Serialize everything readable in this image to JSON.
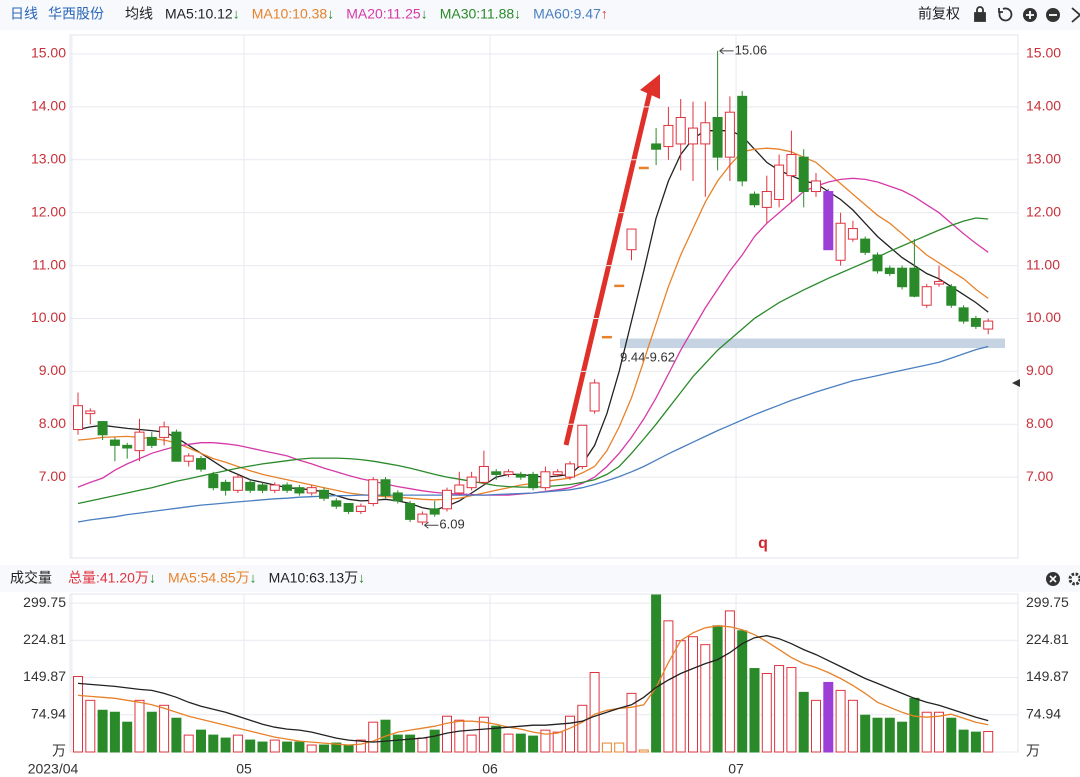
{
  "header": {
    "period": "日线",
    "name": "华西股份",
    "ma_label": "均线",
    "adjust": "前复权"
  },
  "chart_data": [
    {
      "type": "candlestick",
      "open": [
        7.9,
        8.2,
        8.05,
        7.7,
        7.6,
        7.5,
        7.75,
        7.75,
        7.85,
        7.3,
        7.35,
        7.05,
        6.9,
        6.75,
        6.9,
        6.85,
        6.75,
        6.85,
        6.8,
        6.7,
        6.75,
        6.55,
        6.5,
        6.35,
        6.5,
        6.95,
        6.7,
        6.5,
        6.15,
        6.4,
        6.4,
        6.7,
        6.8,
        6.9,
        7.1,
        7.05,
        7.05,
        7.05,
        6.8,
        7.05,
        7.0,
        7.2,
        8.25,
        9.66,
        10.63,
        11.3,
        12.86,
        13.3,
        13.25,
        13.3,
        13.3,
        13.3,
        13.8,
        13.05,
        14.2,
        12.35,
        12.1,
        12.25,
        12.7,
        13.05,
        12.4,
        12.4,
        11.1,
        11.5,
        11.5,
        11.2,
        10.95,
        10.95,
        10.95,
        10.25,
        10.65,
        10.6,
        10.2,
        10.0,
        9.8
      ],
      "high": [
        8.6,
        8.3,
        8.05,
        7.75,
        7.65,
        8.1,
        7.85,
        8.05,
        7.9,
        7.45,
        7.4,
        7.1,
        6.95,
        7.05,
        6.95,
        6.9,
        6.9,
        6.9,
        6.85,
        6.85,
        6.8,
        6.6,
        6.5,
        6.5,
        7.0,
        7.0,
        6.75,
        6.55,
        6.35,
        6.55,
        6.8,
        7.1,
        7.1,
        7.5,
        7.15,
        7.15,
        7.1,
        7.1,
        7.2,
        7.15,
        7.3,
        7.98,
        8.85,
        9.66,
        10.63,
        11.69,
        12.86,
        13.6,
        14.0,
        14.15,
        14.1,
        14.1,
        15.06,
        14.2,
        14.3,
        12.4,
        12.7,
        13.1,
        13.55,
        13.2,
        12.75,
        12.45,
        12.0,
        11.85,
        11.55,
        11.25,
        11.0,
        11.0,
        11.5,
        10.65,
        11.0,
        10.65,
        10.25,
        10.05,
        10.0
      ],
      "low": [
        7.8,
        8.0,
        7.7,
        7.3,
        7.35,
        7.3,
        7.55,
        7.6,
        7.3,
        7.2,
        7.1,
        6.75,
        6.65,
        6.7,
        6.7,
        6.7,
        6.7,
        6.7,
        6.65,
        6.65,
        6.55,
        6.4,
        6.3,
        6.3,
        6.45,
        6.6,
        6.5,
        6.15,
        6.09,
        6.25,
        6.35,
        6.65,
        6.75,
        6.85,
        6.95,
        7.0,
        6.95,
        6.75,
        6.75,
        7.0,
        6.95,
        7.15,
        8.2,
        9.66,
        10.63,
        11.1,
        12.86,
        12.9,
        13.0,
        12.8,
        12.6,
        12.3,
        12.8,
        12.6,
        12.5,
        12.1,
        11.8,
        12.1,
        12.2,
        12.1,
        12.3,
        11.3,
        11.0,
        11.45,
        11.2,
        10.85,
        10.8,
        10.55,
        10.4,
        10.2,
        10.6,
        10.2,
        9.9,
        9.8,
        9.7
      ],
      "close": [
        8.35,
        8.25,
        7.8,
        7.6,
        7.55,
        7.85,
        7.6,
        7.95,
        7.3,
        7.4,
        7.15,
        6.8,
        6.75,
        7.0,
        6.75,
        6.75,
        6.85,
        6.75,
        6.7,
        6.8,
        6.6,
        6.45,
        6.35,
        6.45,
        6.95,
        6.65,
        6.55,
        6.2,
        6.3,
        6.3,
        6.75,
        6.85,
        7.0,
        7.2,
        7.05,
        7.1,
        7.0,
        6.8,
        7.1,
        7.1,
        7.25,
        7.98,
        8.78,
        9.66,
        10.63,
        11.69,
        12.86,
        13.2,
        13.65,
        13.8,
        13.6,
        13.7,
        13.05,
        13.9,
        12.6,
        12.15,
        12.4,
        12.9,
        13.1,
        12.4,
        12.6,
        11.3,
        11.8,
        11.7,
        11.25,
        10.9,
        10.85,
        10.6,
        10.42,
        10.6,
        10.7,
        10.25,
        9.95,
        9.85,
        9.95
      ],
      "up_color": "#e0333f",
      "down_color": "#2a8a2a",
      "flat_color": "#e8822a",
      "highlight": {
        "index": 61,
        "color": "#9b3fd6"
      },
      "series": [
        {
          "name": "MA5:10.12",
          "trend": "↓",
          "trend_color": "#2a8a2a",
          "color": "#222222",
          "values": [
            7.9,
            7.95,
            7.98,
            7.95,
            7.92,
            7.9,
            7.88,
            7.85,
            7.75,
            7.6,
            7.45,
            7.3,
            7.15,
            7.05,
            6.95,
            6.9,
            6.85,
            6.8,
            6.78,
            6.76,
            6.72,
            6.65,
            6.58,
            6.55,
            6.56,
            6.58,
            6.55,
            6.5,
            6.42,
            6.38,
            6.45,
            6.55,
            6.7,
            6.85,
            7.0,
            7.05,
            7.05,
            7.02,
            7.0,
            7.02,
            7.05,
            7.25,
            7.6,
            8.2,
            9.0,
            9.95,
            10.9,
            11.9,
            12.6,
            13.1,
            13.4,
            13.55,
            13.55,
            13.55,
            13.45,
            13.2,
            12.95,
            12.8,
            12.7,
            12.6,
            12.55,
            12.4,
            12.25,
            12.05,
            11.8,
            11.55,
            11.35,
            11.15,
            11.0,
            10.85,
            10.75,
            10.6,
            10.45,
            10.3,
            10.12
          ]
        },
        {
          "name": "MA10:10.38",
          "trend": "↓",
          "trend_color": "#2a8a2a",
          "color": "#e8822a",
          "values": [
            7.7,
            7.72,
            7.75,
            7.76,
            7.77,
            7.75,
            7.73,
            7.7,
            7.65,
            7.55,
            7.45,
            7.35,
            7.28,
            7.2,
            7.12,
            7.05,
            7.0,
            6.95,
            6.9,
            6.85,
            6.8,
            6.75,
            6.7,
            6.67,
            6.65,
            6.63,
            6.62,
            6.6,
            6.58,
            6.57,
            6.58,
            6.6,
            6.65,
            6.7,
            6.75,
            6.8,
            6.85,
            6.88,
            6.92,
            6.95,
            6.98,
            7.08,
            7.2,
            7.5,
            7.95,
            8.5,
            9.2,
            9.9,
            10.6,
            11.2,
            11.7,
            12.2,
            12.6,
            12.9,
            13.15,
            13.2,
            13.22,
            13.2,
            13.15,
            13.05,
            12.95,
            12.75,
            12.55,
            12.35,
            12.15,
            11.95,
            11.8,
            11.6,
            11.4,
            11.2,
            11.05,
            10.9,
            10.75,
            10.55,
            10.38
          ]
        },
        {
          "name": "MA20:11.25",
          "trend": "↓",
          "trend_color": "#2a8a2a",
          "color": "#d63aa8",
          "values": [
            6.81,
            6.9,
            6.98,
            7.13,
            7.25,
            7.35,
            7.45,
            7.52,
            7.58,
            7.62,
            7.65,
            7.65,
            7.63,
            7.6,
            7.55,
            7.5,
            7.45,
            7.4,
            7.32,
            7.25,
            7.17,
            7.1,
            7.03,
            6.97,
            6.92,
            6.87,
            6.82,
            6.78,
            6.74,
            6.71,
            6.69,
            6.68,
            6.67,
            6.66,
            6.66,
            6.66,
            6.68,
            6.7,
            6.73,
            6.76,
            6.8,
            6.88,
            7.0,
            7.2,
            7.45,
            7.75,
            8.1,
            8.5,
            8.95,
            9.4,
            9.8,
            10.2,
            10.55,
            10.9,
            11.2,
            11.55,
            11.8,
            12.0,
            12.2,
            12.4,
            12.5,
            12.58,
            12.63,
            12.65,
            12.63,
            12.58,
            12.5,
            12.42,
            12.3,
            12.15,
            12.0,
            11.8,
            11.6,
            11.42,
            11.25
          ]
        },
        {
          "name": "MA30:11.88",
          "trend": "↓",
          "trend_color": "#2a8a2a",
          "color": "#2a8a2a",
          "values": [
            6.5,
            6.55,
            6.6,
            6.65,
            6.7,
            6.75,
            6.8,
            6.86,
            6.92,
            6.97,
            7.02,
            7.07,
            7.12,
            7.17,
            7.21,
            7.25,
            7.28,
            7.31,
            7.34,
            7.36,
            7.36,
            7.36,
            7.35,
            7.33,
            7.3,
            7.26,
            7.22,
            7.17,
            7.11,
            7.05,
            7.0,
            6.96,
            6.92,
            6.88,
            6.84,
            6.82,
            6.81,
            6.81,
            6.82,
            6.84,
            6.86,
            6.9,
            6.95,
            7.05,
            7.2,
            7.45,
            7.72,
            8.0,
            8.3,
            8.6,
            8.9,
            9.15,
            9.4,
            9.6,
            9.8,
            10.0,
            10.15,
            10.3,
            10.42,
            10.54,
            10.65,
            10.76,
            10.86,
            10.96,
            11.06,
            11.16,
            11.27,
            11.37,
            11.47,
            11.57,
            11.67,
            11.76,
            11.84,
            11.9,
            11.88
          ]
        },
        {
          "name": "MA60:9.47",
          "trend": "↑",
          "trend_color": "#e0333f",
          "color": "#4a7fc1",
          "values": [
            6.15,
            6.19,
            6.22,
            6.25,
            6.29,
            6.32,
            6.35,
            6.38,
            6.41,
            6.44,
            6.47,
            6.49,
            6.51,
            6.53,
            6.55,
            6.57,
            6.59,
            6.6,
            6.62,
            6.63,
            6.64,
            6.65,
            6.65,
            6.66,
            6.66,
            6.66,
            6.66,
            6.66,
            6.66,
            6.66,
            6.66,
            6.66,
            6.66,
            6.66,
            6.67,
            6.68,
            6.69,
            6.7,
            6.72,
            6.74,
            6.76,
            6.8,
            6.86,
            6.93,
            7.01,
            7.1,
            7.2,
            7.32,
            7.44,
            7.55,
            7.66,
            7.77,
            7.88,
            7.98,
            8.08,
            8.18,
            8.27,
            8.36,
            8.45,
            8.53,
            8.61,
            8.68,
            8.75,
            8.82,
            8.87,
            8.92,
            8.97,
            9.02,
            9.07,
            9.12,
            9.17,
            9.25,
            9.33,
            9.41,
            9.47
          ]
        }
      ],
      "ylim": [
        5.47,
        15.36
      ],
      "yticks": [
        {
          "value": 7,
          "label": "7.00"
        },
        {
          "value": 8,
          "label": "8.00"
        },
        {
          "value": 9,
          "label": "9.00"
        },
        {
          "value": 10,
          "label": "10.00"
        },
        {
          "value": 11,
          "label": "11.00"
        },
        {
          "value": 12,
          "label": "12.00"
        },
        {
          "value": 13,
          "label": "13.00"
        },
        {
          "value": 14,
          "label": "14.00"
        },
        {
          "value": 15,
          "label": "15.00"
        }
      ],
      "grid": true,
      "max_label": "15.06",
      "min_label": "6.09",
      "band": {
        "label": "9.44-9.62",
        "range": [
          9.44,
          9.62
        ],
        "color": "#c5d3e3"
      },
      "note": "q"
    },
    {
      "type": "bar",
      "title": "成交量",
      "categories": [
        "2023/04",
        null,
        null,
        null,
        null,
        null,
        null,
        null,
        null,
        null,
        null,
        null,
        null,
        null,
        "05",
        null,
        null,
        null,
        null,
        null,
        null,
        null,
        null,
        null,
        null,
        null,
        null,
        null,
        null,
        null,
        null,
        null,
        null,
        null,
        "06",
        null,
        null,
        null,
        null,
        null,
        null,
        null,
        null,
        null,
        null,
        null,
        null,
        null,
        null,
        null,
        null,
        null,
        null,
        null,
        "07",
        null,
        null,
        null,
        null,
        null,
        null,
        null,
        null,
        null,
        null,
        null,
        null,
        null,
        null,
        null,
        null,
        null,
        null,
        null,
        null
      ],
      "values": [
        152,
        104,
        84,
        80,
        60,
        104,
        80,
        94,
        68,
        34,
        44,
        34,
        28,
        34,
        24,
        20,
        24,
        20,
        20,
        14,
        14,
        18,
        14,
        24,
        60,
        64,
        34,
        34,
        28,
        44,
        72,
        64,
        34,
        70,
        52,
        36,
        36,
        32,
        44,
        40,
        72,
        94,
        160,
        18,
        18,
        118,
        4,
        316,
        264,
        224,
        232,
        216,
        254,
        284,
        244,
        168,
        158,
        174,
        170,
        120,
        104,
        140,
        124,
        104,
        74,
        68,
        68,
        60,
        108,
        80,
        80,
        68,
        44,
        40,
        41.2
      ],
      "total_label": "总量:41.20万",
      "total_trend": "↓",
      "total_color": "#e0333f",
      "series": [
        {
          "name": "MA5:54.85万",
          "trend": "↓",
          "trend_color": "#2a8a2a",
          "color": "#e8822a",
          "values": [
            114,
            112,
            110,
            108,
            104,
            100,
            95,
            88,
            80,
            72,
            66,
            60,
            54,
            48,
            42,
            36,
            30,
            26,
            22,
            20,
            18,
            16,
            14,
            16,
            22,
            32,
            40,
            44,
            48,
            52,
            58,
            62,
            62,
            60,
            56,
            50,
            46,
            40,
            36,
            38,
            48,
            60,
            76,
            84,
            88,
            90,
            95,
            130,
            180,
            224,
            240,
            250,
            254,
            252,
            246,
            236,
            222,
            206,
            190,
            178,
            170,
            160,
            148,
            134,
            118,
            100,
            90,
            80,
            72,
            70,
            72,
            76,
            68,
            60,
            54.85
          ]
        },
        {
          "name": "MA10:63.13万",
          "trend": "↓",
          "trend_color": "#2a8a2a",
          "color": "#222222",
          "values": [
            138,
            136,
            134,
            132,
            129,
            126,
            124,
            118,
            110,
            100,
            92,
            86,
            80,
            72,
            64,
            56,
            50,
            46,
            44,
            40,
            34,
            28,
            24,
            22,
            20,
            22,
            24,
            26,
            28,
            32,
            38,
            42,
            44,
            46,
            48,
            50,
            52,
            54,
            54,
            56,
            58,
            62,
            72,
            80,
            88,
            95,
            110,
            130,
            145,
            158,
            168,
            178,
            186,
            200,
            218,
            230,
            234,
            228,
            218,
            206,
            196,
            184,
            172,
            160,
            148,
            138,
            128,
            118,
            108,
            100,
            94,
            86,
            78,
            70,
            63.13
          ]
        }
      ],
      "ylim": [
        0,
        318
      ],
      "yticks": [
        {
          "value": 0,
          "label": "万"
        },
        74.94,
        149.87,
        224.81,
        299.75
      ],
      "grid": true
    }
  ]
}
